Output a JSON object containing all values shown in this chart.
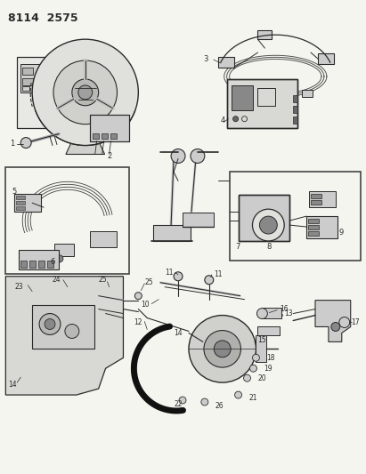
{
  "title": "8114  2575",
  "bg_color": "#f5f5f0",
  "line_color": "#2a2a2a",
  "title_fontsize": 9,
  "fig_width": 4.11,
  "fig_height": 5.33,
  "dpi": 100
}
